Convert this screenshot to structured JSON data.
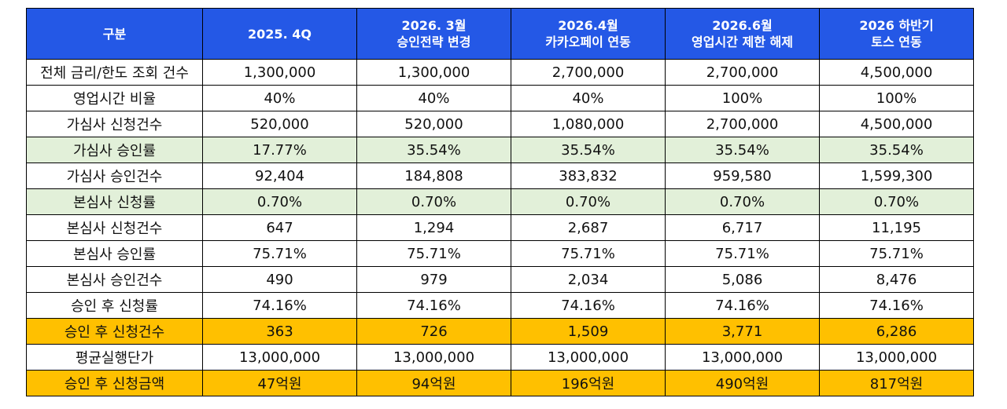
{
  "table": {
    "headers": [
      {
        "line1": "구분",
        "line2": ""
      },
      {
        "line1": "2025. 4Q",
        "line2": ""
      },
      {
        "line1": "2026. 3월",
        "line2": "승인전략 변경"
      },
      {
        "line1": "2026.4월",
        "line2": "카카오페이 연동"
      },
      {
        "line1": "2026.6월",
        "line2": "영업시간 제한 해제"
      },
      {
        "line1": "2026 하반기",
        "line2": "토스 연동"
      }
    ],
    "rows": [
      {
        "label": "전체 금리/한도 조회 건수",
        "values": [
          "1,300,000",
          "1,300,000",
          "2,700,000",
          "2,700,000",
          "4,500,000"
        ]
      },
      {
        "label": "영업시간 비율",
        "values": [
          "40%",
          "40%",
          "40%",
          "100%",
          "100%"
        ]
      },
      {
        "label": "가심사 신청건수",
        "values": [
          "520,000",
          "520,000",
          "1,080,000",
          "2,700,000",
          "4,500,000"
        ]
      },
      {
        "label": "가심사 승인률",
        "values": [
          "17.77%",
          "35.54%",
          "35.54%",
          "35.54%",
          "35.54%"
        ]
      },
      {
        "label": "가심사 승인건수",
        "values": [
          "92,404",
          "184,808",
          "383,832",
          "959,580",
          "1,599,300"
        ]
      },
      {
        "label": "본심사 신청률",
        "values": [
          "0.70%",
          "0.70%",
          "0.70%",
          "0.70%",
          "0.70%"
        ]
      },
      {
        "label": "본심사 신청건수",
        "values": [
          "647",
          "1,294",
          "2,687",
          "6,717",
          "11,195"
        ]
      },
      {
        "label": "본심사 승인률",
        "values": [
          "75.71%",
          "75.71%",
          "75.71%",
          "75.71%",
          "75.71%"
        ]
      },
      {
        "label": "본심사 승인건수",
        "values": [
          "490",
          "979",
          "2,034",
          "5,086",
          "8,476"
        ]
      },
      {
        "label": "승인 후 신청률",
        "values": [
          "74.16%",
          "74.16%",
          "74.16%",
          "74.16%",
          "74.16%"
        ]
      },
      {
        "label": "승인 후 신청건수",
        "values": [
          "363",
          "726",
          "1,509",
          "3,771",
          "6,286"
        ]
      },
      {
        "label": "평균실행단가",
        "values": [
          "13,000,000",
          "13,000,000",
          "13,000,000",
          "13,000,000",
          "13,000,000"
        ]
      },
      {
        "label": "승인 후 신청금액",
        "values": [
          "47억원",
          "94억원",
          "196억원",
          "490억원",
          "817억원"
        ]
      }
    ]
  },
  "colors": {
    "header_bg": "#2458e6",
    "highlight_green": "#e2f0d9",
    "highlight_orange": "#ffc000"
  }
}
